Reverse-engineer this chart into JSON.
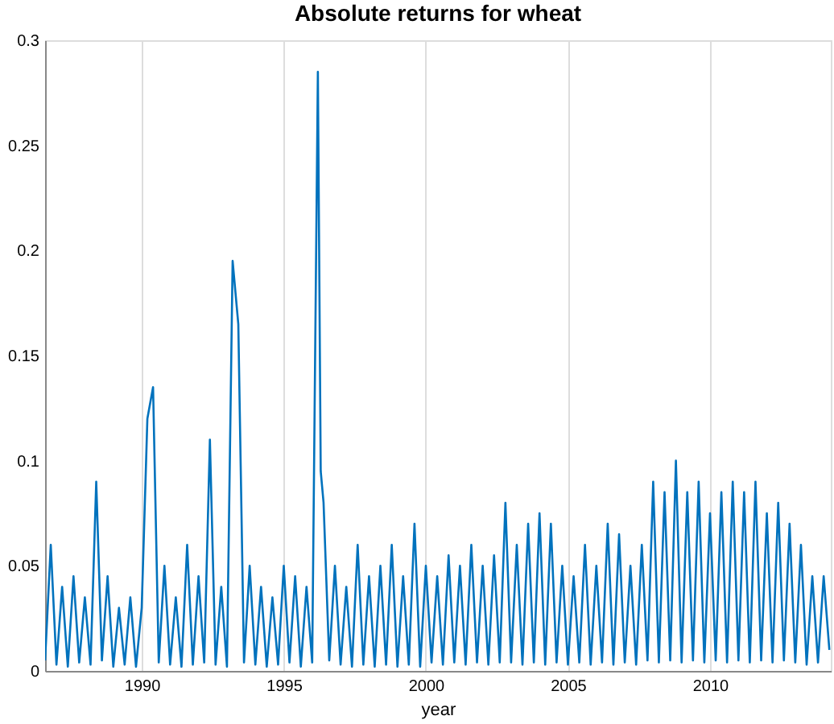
{
  "chart_data": {
    "type": "line",
    "title": "Absolute returns for wheat",
    "xlabel": "year",
    "x": [
      1986.6,
      1986.8,
      1987.0,
      1987.2,
      1987.4,
      1987.6,
      1987.8,
      1988.0,
      1988.2,
      1988.4,
      1988.6,
      1988.8,
      1989.0,
      1989.2,
      1989.4,
      1989.6,
      1989.8,
      1990.0,
      1990.2,
      1990.4,
      1990.6,
      1990.8,
      1991.0,
      1991.2,
      1991.4,
      1991.6,
      1991.8,
      1992.0,
      1992.2,
      1992.4,
      1992.6,
      1992.8,
      1993.0,
      1993.2,
      1993.4,
      1993.6,
      1993.8,
      1994.0,
      1994.2,
      1994.4,
      1994.6,
      1994.8,
      1995.0,
      1995.2,
      1995.4,
      1995.6,
      1995.8,
      1996.0,
      1996.2,
      1996.3,
      1996.4,
      1996.6,
      1996.8,
      1997.0,
      1997.2,
      1997.4,
      1997.6,
      1997.8,
      1998.0,
      1998.2,
      1998.4,
      1998.6,
      1998.8,
      1999.0,
      1999.2,
      1999.4,
      1999.6,
      1999.8,
      2000.0,
      2000.2,
      2000.4,
      2000.6,
      2000.8,
      2001.0,
      2001.2,
      2001.4,
      2001.6,
      2001.8,
      2002.0,
      2002.2,
      2002.4,
      2002.6,
      2002.8,
      2003.0,
      2003.2,
      2003.4,
      2003.6,
      2003.8,
      2004.0,
      2004.2,
      2004.4,
      2004.6,
      2004.8,
      2005.0,
      2005.2,
      2005.4,
      2005.6,
      2005.8,
      2006.0,
      2006.2,
      2006.4,
      2006.6,
      2006.8,
      2007.0,
      2007.2,
      2007.4,
      2007.6,
      2007.8,
      2008.0,
      2008.2,
      2008.4,
      2008.6,
      2008.8,
      2009.0,
      2009.2,
      2009.4,
      2009.6,
      2009.8,
      2010.0,
      2010.2,
      2010.4,
      2010.6,
      2010.8,
      2011.0,
      2011.2,
      2011.4,
      2011.6,
      2011.8,
      2012.0,
      2012.2,
      2012.4,
      2012.6,
      2012.8,
      2013.0,
      2013.2,
      2013.4,
      2013.6,
      2013.8,
      2014.0,
      2014.2
    ],
    "series": [
      {
        "color": "#0072bd",
        "values": [
          0.005,
          0.06,
          0.003,
          0.04,
          0.002,
          0.045,
          0.004,
          0.035,
          0.003,
          0.09,
          0.005,
          0.045,
          0.002,
          0.03,
          0.003,
          0.035,
          0.002,
          0.03,
          0.12,
          0.135,
          0.004,
          0.05,
          0.003,
          0.035,
          0.002,
          0.06,
          0.003,
          0.045,
          0.004,
          0.11,
          0.003,
          0.04,
          0.002,
          0.195,
          0.165,
          0.004,
          0.05,
          0.003,
          0.04,
          0.002,
          0.035,
          0.003,
          0.05,
          0.004,
          0.045,
          0.002,
          0.04,
          0.004,
          0.285,
          0.095,
          0.08,
          0.005,
          0.05,
          0.003,
          0.04,
          0.002,
          0.06,
          0.003,
          0.045,
          0.002,
          0.05,
          0.003,
          0.06,
          0.002,
          0.045,
          0.003,
          0.07,
          0.002,
          0.05,
          0.004,
          0.045,
          0.003,
          0.055,
          0.004,
          0.05,
          0.003,
          0.06,
          0.004,
          0.05,
          0.003,
          0.055,
          0.004,
          0.08,
          0.004,
          0.06,
          0.003,
          0.07,
          0.004,
          0.075,
          0.003,
          0.07,
          0.004,
          0.05,
          0.003,
          0.045,
          0.004,
          0.06,
          0.003,
          0.05,
          0.004,
          0.07,
          0.003,
          0.065,
          0.004,
          0.05,
          0.003,
          0.06,
          0.005,
          0.09,
          0.004,
          0.085,
          0.005,
          0.1,
          0.004,
          0.085,
          0.005,
          0.09,
          0.004,
          0.075,
          0.005,
          0.085,
          0.004,
          0.09,
          0.005,
          0.085,
          0.004,
          0.09,
          0.005,
          0.075,
          0.004,
          0.08,
          0.005,
          0.07,
          0.004,
          0.06,
          0.003,
          0.045,
          0.004,
          0.045,
          0.01
        ]
      }
    ],
    "xlim": [
      1986.6,
      2014.25
    ],
    "xticks": [
      1990,
      1995,
      2000,
      2005,
      2010
    ],
    "ylim": [
      0,
      0.3
    ],
    "yticks": [
      0,
      0.05,
      0.1,
      0.15,
      0.2,
      0.25,
      0.3
    ],
    "grid": "x",
    "line_style": "solid"
  }
}
